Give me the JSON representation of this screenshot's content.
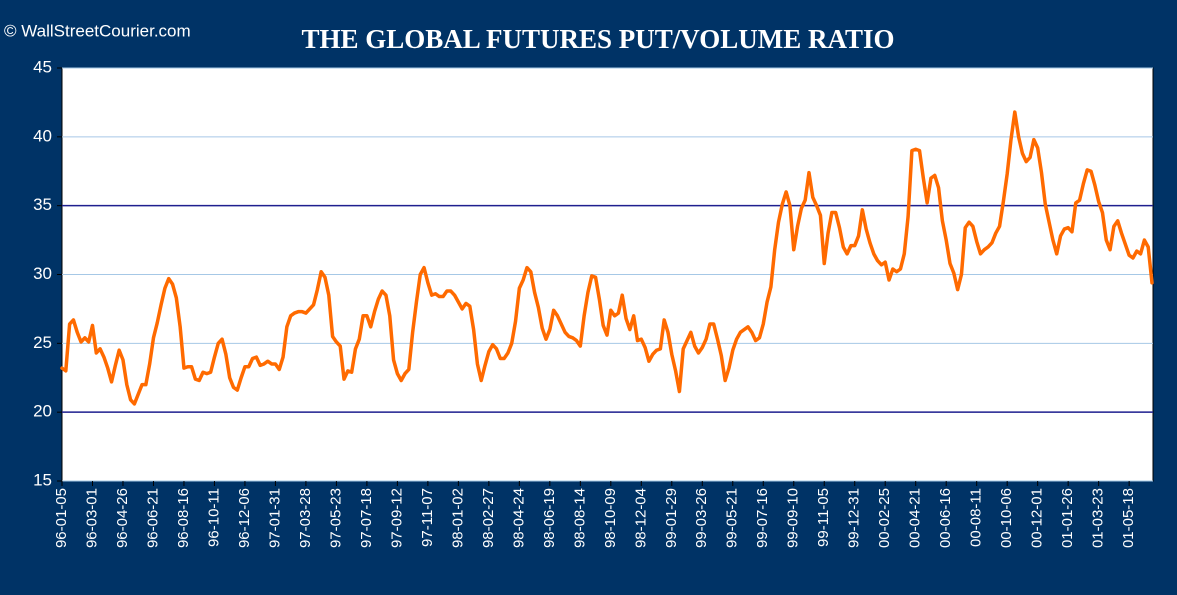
{
  "chart_data": {
    "type": "line",
    "title": "THE GLOBAL FUTURES PUT/VOLUME RATIO",
    "source": "© WallStreetCourier.com",
    "color": "#ff6a00",
    "ylim": [
      15,
      45
    ],
    "yticks": [
      15,
      20,
      25,
      30,
      35,
      40,
      45
    ],
    "grid": true,
    "reference_lines": [
      20,
      35
    ],
    "categories": [
      "96-01-05",
      null,
      null,
      null,
      null,
      null,
      null,
      null,
      "96-03-01",
      null,
      null,
      null,
      null,
      null,
      null,
      null,
      "96-04-26",
      null,
      null,
      null,
      null,
      null,
      null,
      null,
      "96-06-21",
      null,
      null,
      null,
      null,
      null,
      null,
      null,
      "96-08-16",
      null,
      null,
      null,
      null,
      null,
      null,
      null,
      "96-10-11",
      null,
      null,
      null,
      null,
      null,
      null,
      null,
      "96-12-06",
      null,
      null,
      null,
      null,
      null,
      null,
      null,
      "97-01-31",
      null,
      null,
      null,
      null,
      null,
      null,
      null,
      "97-03-28",
      null,
      null,
      null,
      null,
      null,
      null,
      null,
      "97-05-23",
      null,
      null,
      null,
      null,
      null,
      null,
      null,
      "97-07-18",
      null,
      null,
      null,
      null,
      null,
      null,
      null,
      "97-09-12",
      null,
      null,
      null,
      null,
      null,
      null,
      null,
      "97-11-07",
      null,
      null,
      null,
      null,
      null,
      null,
      null,
      "98-01-02",
      null,
      null,
      null,
      null,
      null,
      null,
      null,
      "98-02-27",
      null,
      null,
      null,
      null,
      null,
      null,
      null,
      "98-04-24",
      null,
      null,
      null,
      null,
      null,
      null,
      null,
      "98-06-19",
      null,
      null,
      null,
      null,
      null,
      null,
      null,
      "98-08-14",
      null,
      null,
      null,
      null,
      null,
      null,
      null,
      "98-10-09",
      null,
      null,
      null,
      null,
      null,
      null,
      null,
      "98-12-04",
      null,
      null,
      null,
      null,
      null,
      null,
      null,
      "99-01-29",
      null,
      null,
      null,
      null,
      null,
      null,
      null,
      "99-03-26",
      null,
      null,
      null,
      null,
      null,
      null,
      null,
      "99-05-21",
      null,
      null,
      null,
      null,
      null,
      null,
      null,
      "99-07-16",
      null,
      null,
      null,
      null,
      null,
      null,
      null,
      "99-09-10",
      null,
      null,
      null,
      null,
      null,
      null,
      null,
      "99-11-05",
      null,
      null,
      null,
      null,
      null,
      null,
      null,
      "99-12-31",
      null,
      null,
      null,
      null,
      null,
      null,
      null,
      "00-02-25",
      null,
      null,
      null,
      null,
      null,
      null,
      null,
      "00-04-21",
      null,
      null,
      null,
      null,
      null,
      null,
      null,
      "00-06-16",
      null,
      null,
      null,
      null,
      null,
      null,
      null,
      "00-08-11",
      null,
      null,
      null,
      null,
      null,
      null,
      null,
      "00-10-06",
      null,
      null,
      null,
      null,
      null,
      null,
      null,
      "00-12-01",
      null,
      null,
      null,
      null,
      null,
      null,
      null,
      "01-01-26",
      null,
      null,
      null,
      null,
      null,
      null,
      null,
      "01-03-23",
      null,
      null,
      null,
      null,
      null,
      null,
      null,
      "01-05-18",
      null,
      null,
      null,
      null,
      null,
      null
    ],
    "values": [
      23.2,
      23.0,
      26.4,
      26.7,
      25.8,
      25.1,
      25.4,
      25.1,
      26.3,
      24.3,
      24.6,
      24.0,
      23.2,
      22.2,
      23.4,
      24.5,
      23.8,
      22.0,
      20.9,
      20.6,
      21.3,
      22.0,
      22.0,
      23.5,
      25.4,
      26.5,
      27.8,
      29.0,
      29.7,
      29.3,
      28.3,
      26.2,
      23.2,
      23.3,
      23.3,
      22.4,
      22.3,
      22.9,
      22.8,
      22.9,
      24.0,
      25.0,
      25.3,
      24.2,
      22.5,
      21.8,
      21.6,
      22.5,
      23.3,
      23.3,
      23.9,
      24.0,
      23.4,
      23.5,
      23.7,
      23.5,
      23.5,
      23.1,
      24.0,
      26.2,
      27.0,
      27.2,
      27.3,
      27.3,
      27.2,
      27.5,
      27.8,
      28.9,
      30.2,
      29.8,
      28.5,
      25.5,
      25.1,
      24.8,
      22.4,
      23.0,
      22.9,
      24.6,
      25.3,
      27.0,
      27.0,
      26.2,
      27.3,
      28.2,
      28.8,
      28.5,
      27.0,
      23.8,
      22.8,
      22.3,
      22.8,
      23.1,
      25.8,
      28.0,
      30.0,
      30.5,
      29.4,
      28.5,
      28.6,
      28.4,
      28.4,
      28.8,
      28.8,
      28.5,
      28.0,
      27.5,
      27.9,
      27.7,
      26.0,
      23.5,
      22.3,
      23.4,
      24.4,
      24.9,
      24.6,
      23.9,
      23.9,
      24.3,
      25.0,
      26.6,
      29.0,
      29.6,
      30.5,
      30.2,
      28.7,
      27.6,
      26.1,
      25.3,
      26.0,
      27.4,
      27.0,
      26.4,
      25.8,
      25.5,
      25.4,
      25.2,
      24.8,
      27.0,
      28.7,
      29.9,
      29.8,
      28.2,
      26.3,
      25.6,
      27.4,
      27.0,
      27.2,
      28.5,
      26.8,
      26.0,
      27.0,
      25.2,
      25.3,
      24.7,
      23.7,
      24.2,
      24.5,
      24.6,
      26.7,
      25.8,
      24.2,
      23.0,
      21.5,
      24.6,
      25.2,
      25.8,
      24.8,
      24.3,
      24.7,
      25.3,
      26.4,
      26.4,
      25.3,
      24.1,
      22.3,
      23.2,
      24.5,
      25.3,
      25.8,
      26.0,
      26.2,
      25.8,
      25.2,
      25.4,
      26.4,
      28.0,
      29.1,
      31.8,
      33.8,
      35.1,
      36.0,
      35.0,
      31.8,
      33.5,
      34.8,
      35.4,
      37.4,
      35.6,
      35.0,
      34.3,
      30.8,
      33.0,
      34.5,
      34.5,
      33.4,
      32.0,
      31.5,
      32.1,
      32.1,
      32.8,
      34.7,
      33.3,
      32.3,
      31.5,
      31.0,
      30.7,
      30.9,
      29.6,
      30.4,
      30.2,
      30.4,
      31.5,
      34.2,
      39.0,
      39.1,
      39.0,
      37.0,
      35.2,
      37.0,
      37.2,
      36.3,
      33.9,
      32.5,
      30.8,
      30.1,
      28.9,
      30.0,
      33.4,
      33.8,
      33.5,
      32.4,
      31.5,
      31.8,
      32.0,
      32.3,
      33.0,
      33.5,
      35.3,
      37.3,
      39.8,
      41.8,
      40.0,
      38.8,
      38.2,
      38.5,
      39.8,
      39.2,
      37.4,
      35.1,
      33.8,
      32.5,
      31.5,
      32.8,
      33.3,
      33.4,
      33.1,
      35.2,
      35.4,
      36.6,
      37.6,
      37.5,
      36.5,
      35.3,
      34.5,
      32.5,
      31.8,
      33.5,
      33.9,
      33.0,
      32.2,
      31.4,
      31.2,
      31.7,
      31.5,
      32.5,
      32.0,
      29.4
    ]
  }
}
